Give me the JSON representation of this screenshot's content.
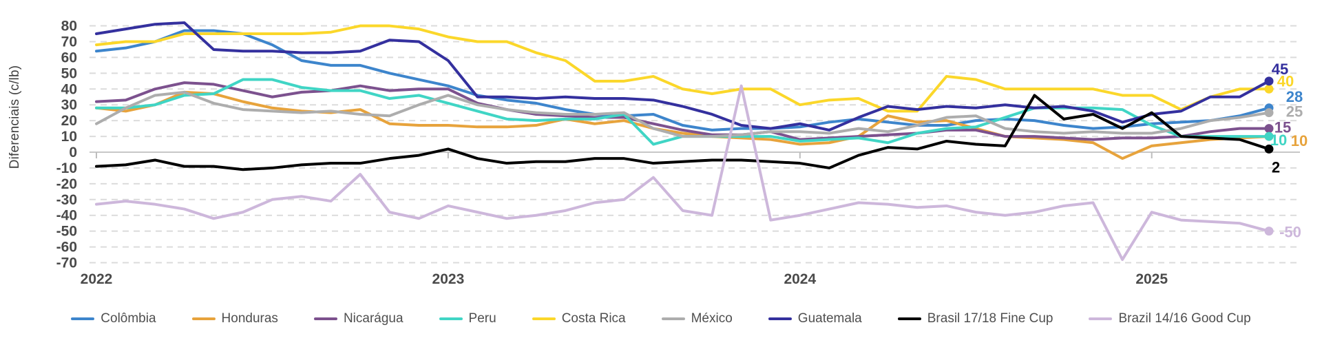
{
  "chart_data": {
    "type": "line",
    "title": "",
    "ylabel": "Diferenciais (c/lb)",
    "xlabel": "",
    "x_unit": "month",
    "n_months": 41,
    "x_range_note": "monthly points from Jan 2022 to May 2025",
    "x_ticks": [
      {
        "label": "2022",
        "month": 0
      },
      {
        "label": "2023",
        "month": 12
      },
      {
        "label": "2024",
        "month": 24
      },
      {
        "label": "2025",
        "month": 36
      }
    ],
    "ylim": [
      -70,
      80
    ],
    "y_tick_step": 10,
    "grid": {
      "horizontal_dashed": true,
      "zero_line_solid": true
    },
    "legend_position": "bottom",
    "colors": {
      "grid": "#dbdbdb",
      "zero_line": "#c7c7c7",
      "axis_text": "#4a4a4a",
      "legend_text": "#4f4f4f"
    },
    "series": [
      {
        "name": "Colômbia",
        "color": "#3d85cc",
        "end_label": "28",
        "label_dx": 37,
        "label_dy": -17,
        "values": [
          64,
          66,
          70,
          77,
          77,
          75,
          68,
          58,
          55,
          55,
          50,
          46,
          42,
          36,
          33,
          31,
          27,
          24,
          23,
          24,
          17,
          14,
          15,
          15,
          16,
          19,
          21,
          19,
          17,
          17,
          20,
          21,
          20,
          17,
          15,
          16,
          18,
          19,
          20,
          23,
          28
        ]
      },
      {
        "name": "Honduras",
        "color": "#e7a33c",
        "end_label": "10",
        "label_dx": 44,
        "label_dy": 6,
        "values": [
          28,
          26,
          30,
          38,
          37,
          32,
          28,
          26,
          25,
          27,
          18,
          17,
          17,
          16,
          16,
          17,
          21,
          18,
          20,
          15,
          12,
          10,
          9,
          8,
          5,
          6,
          10,
          23,
          19,
          20,
          15,
          10,
          9,
          8,
          6,
          -4,
          4,
          6,
          8,
          9,
          10
        ]
      },
      {
        "name": "Nicarágua",
        "color": "#7c518e",
        "end_label": "15",
        "label_dx": 20,
        "label_dy": -2,
        "values": [
          32,
          33,
          40,
          44,
          43,
          39,
          35,
          38,
          39,
          42,
          39,
          40,
          40,
          31,
          27,
          24,
          23,
          22,
          22,
          18,
          14,
          11,
          11,
          13,
          8,
          9,
          10,
          11,
          12,
          14,
          14,
          10,
          10,
          9,
          8,
          9,
          9,
          10,
          13,
          15,
          15
        ]
      },
      {
        "name": "Peru",
        "color": "#40d5c5",
        "end_label": "10",
        "label_dx": 14,
        "label_dy": 5,
        "values": [
          28,
          28,
          30,
          36,
          37,
          46,
          46,
          41,
          39,
          39,
          34,
          36,
          31,
          26,
          21,
          20,
          21,
          21,
          24,
          5,
          10,
          10,
          10,
          10,
          7,
          8,
          9,
          6,
          12,
          15,
          16,
          22,
          28,
          28,
          28,
          27,
          17,
          10,
          10,
          10,
          10
        ]
      },
      {
        "name": "Costa Rica",
        "color": "#fbd72a",
        "end_label": "40",
        "label_dx": 24,
        "label_dy": -12,
        "values": [
          68,
          70,
          70,
          75,
          75,
          75,
          75,
          75,
          76,
          80,
          80,
          78,
          73,
          70,
          70,
          63,
          58,
          45,
          45,
          48,
          40,
          37,
          40,
          40,
          30,
          33,
          34,
          26,
          26,
          48,
          46,
          40,
          40,
          40,
          40,
          36,
          36,
          27,
          35,
          40,
          40
        ]
      },
      {
        "name": "México",
        "color": "#adadad",
        "end_label": "25",
        "label_dx": 37,
        "label_dy": -2,
        "values": [
          18,
          28,
          36,
          38,
          31,
          27,
          26,
          25,
          26,
          24,
          23,
          30,
          36,
          30,
          27,
          25,
          24,
          24,
          25,
          15,
          10,
          10,
          11,
          13,
          13,
          12,
          15,
          13,
          17,
          22,
          23,
          15,
          13,
          12,
          13,
          12,
          12,
          15,
          20,
          22,
          25
        ]
      },
      {
        "name": "Guatemala",
        "color": "#34309e",
        "end_label": "45",
        "label_dx": 16,
        "label_dy": -18,
        "values": [
          75,
          78,
          81,
          82,
          65,
          64,
          64,
          63,
          63,
          64,
          71,
          70,
          58,
          35,
          35,
          34,
          35,
          34,
          34,
          33,
          29,
          24,
          17,
          15,
          18,
          14,
          22,
          29,
          27,
          29,
          28,
          30,
          28,
          29,
          26,
          19,
          24,
          26,
          35,
          35,
          45
        ]
      },
      {
        "name": "Brasil 17/18 Fine Cup",
        "color": "#000000",
        "end_label": "2",
        "label_dx": 10,
        "label_dy": 26,
        "values": [
          -9,
          -8,
          -5,
          -9,
          -9,
          -11,
          -10,
          -8,
          -7,
          -7,
          -4,
          -2,
          2,
          -4,
          -7,
          -6,
          -6,
          -4,
          -4,
          -7,
          -6,
          -5,
          -5,
          -6,
          -7,
          -10,
          -2,
          3,
          2,
          7,
          5,
          4,
          36,
          21,
          24,
          15,
          25,
          10,
          9,
          8,
          2
        ]
      },
      {
        "name": "Brazil 14/16 Good Cup",
        "color": "#cdb7db",
        "end_label": "-50",
        "label_dx": 31,
        "label_dy": 1,
        "values": [
          -33,
          -31,
          -33,
          -36,
          -42,
          -38,
          -30,
          -28,
          -31,
          -14,
          -38,
          -42,
          -34,
          -38,
          -42,
          -40,
          -37,
          -32,
          -30,
          -16,
          -37,
          -40,
          42,
          -43,
          -40,
          -36,
          -32,
          -33,
          -35,
          -34,
          -38,
          -40,
          -38,
          -34,
          -32,
          -68,
          -38,
          -43,
          -44,
          -45,
          -50
        ]
      }
    ]
  }
}
